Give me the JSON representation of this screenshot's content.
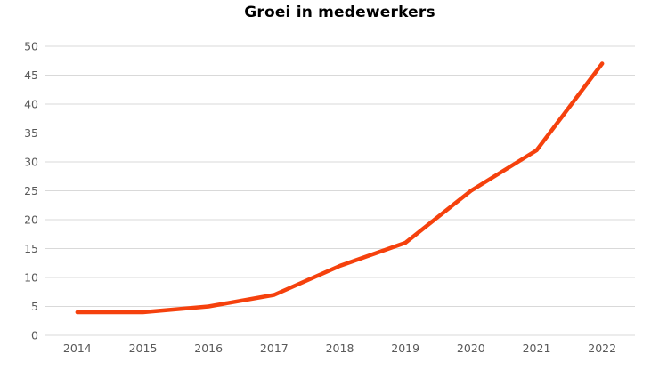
{
  "title": "Groei in medewerkers",
  "chart_data": {
    "type": "line",
    "title": "Groei in medewerkers",
    "categories": [
      "2014",
      "2015",
      "2016",
      "2017",
      "2018",
      "2019",
      "2020",
      "2021",
      "2022"
    ],
    "series": [
      {
        "name": "medewerkers",
        "values": [
          4,
          4,
          5,
          7,
          12,
          16,
          25,
          32,
          47
        ]
      }
    ],
    "xlabel": "",
    "ylabel": "",
    "ylim": [
      0,
      50
    ],
    "y_ticks": [
      0,
      5,
      10,
      15,
      20,
      25,
      30,
      35,
      40,
      45,
      50
    ],
    "grid": true,
    "legend": "none",
    "colors": {
      "line": "#f5410d",
      "gridline": "#d9d9d9",
      "tick_label": "#595959",
      "title": "#000000",
      "background": "#ffffff"
    }
  }
}
